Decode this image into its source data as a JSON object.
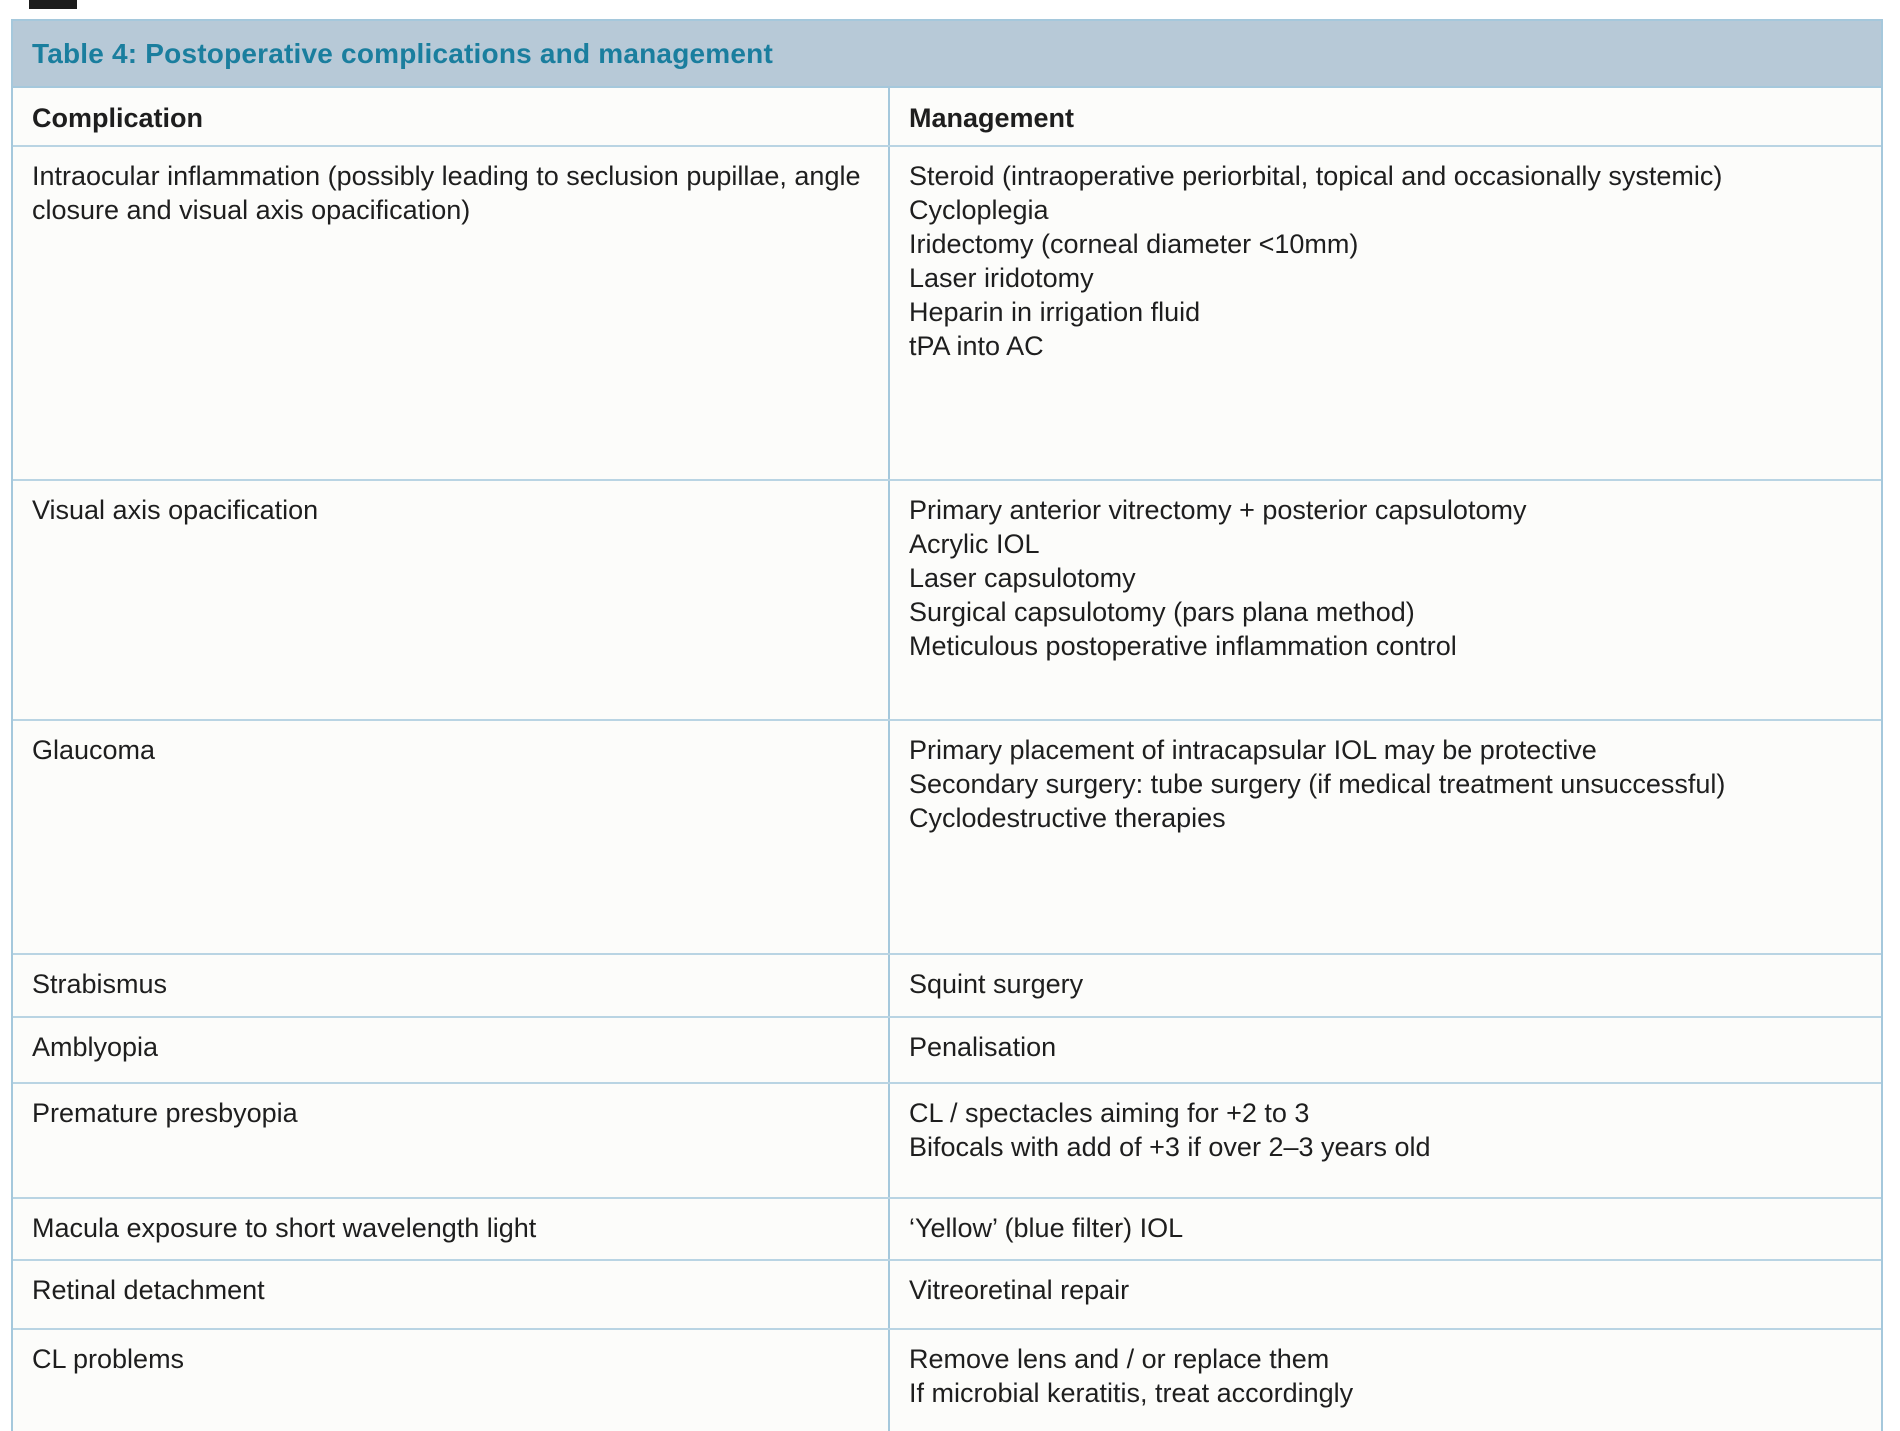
{
  "table": {
    "title": "Table 4: Postoperative complications and management",
    "columns": {
      "complication": "Complication",
      "management": "Management"
    },
    "rows": [
      {
        "complication": "Intraocular inflammation (possibly leading to seclusion pupillae, angle closure and visual axis opacification)",
        "management": [
          "Steroid (intraoperative periorbital, topical and occasionally systemic)",
          "Cycloplegia",
          "Iridectomy (corneal diameter <10mm)",
          "Laser iridotomy",
          "Heparin in irrigation fluid",
          "tPA into AC"
        ]
      },
      {
        "complication": "Visual axis opacification",
        "management": [
          "Primary anterior vitrectomy + posterior capsulotomy",
          "Acrylic IOL",
          "Laser capsulotomy",
          "Surgical capsulotomy (pars plana method)",
          "Meticulous postoperative inflammation control"
        ]
      },
      {
        "complication": "Glaucoma",
        "management": [
          "Primary placement of intracapsular IOL may be protective",
          "Secondary surgery: tube surgery (if medical treatment unsuccessful)",
          "Cyclodestructive therapies"
        ]
      },
      {
        "complication": "Strabismus",
        "management": [
          "Squint surgery"
        ]
      },
      {
        "complication": "Amblyopia",
        "management": [
          "Penalisation"
        ]
      },
      {
        "complication": "Premature presbyopia",
        "management": [
          "CL / spectacles aiming for +2 to 3",
          "Bifocals with add of +3 if over 2–3 years old"
        ]
      },
      {
        "complication": "Macula exposure to short wavelength light",
        "management": [
          "‘Yellow’ (blue filter) IOL"
        ]
      },
      {
        "complication": "Retinal detachment",
        "management": [
          "Vitreoretinal repair"
        ]
      },
      {
        "complication": "CL problems",
        "management": [
          "Remove lens and / or replace them",
          "If microbial keratitis, treat accordingly"
        ]
      }
    ],
    "colors": {
      "title_text": "#1a7e9e",
      "header_bg": "#b7c9d7",
      "border": "#a5c8dc",
      "body_text": "#1e1e1e"
    }
  }
}
